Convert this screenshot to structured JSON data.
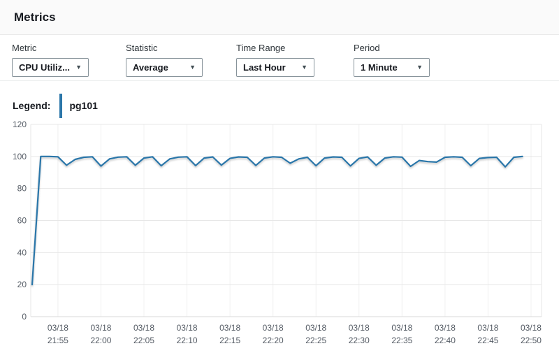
{
  "header": {
    "title": "Metrics"
  },
  "filters": {
    "metric": {
      "label": "Metric",
      "value": "CPU Utiliz..."
    },
    "statistic": {
      "label": "Statistic",
      "value": "Average"
    },
    "time_range": {
      "label": "Time Range",
      "value": "Last Hour"
    },
    "period": {
      "label": "Period",
      "value": "1 Minute"
    }
  },
  "icons": {
    "dropdown_caret": "▼"
  },
  "legend": {
    "label": "Legend:",
    "series_name": "pg101",
    "color": "#2b76a9"
  },
  "chart_data": {
    "type": "line",
    "title": "",
    "xlabel": "",
    "ylabel": "",
    "ylim": [
      0,
      120
    ],
    "yticks": [
      0,
      20,
      40,
      60,
      80,
      100,
      120
    ],
    "grid": true,
    "legend_position": "top-left",
    "x_ticks": [
      {
        "date": "03/18",
        "time": "21:55",
        "offset_min": 3
      },
      {
        "date": "03/18",
        "time": "22:00",
        "offset_min": 8
      },
      {
        "date": "03/18",
        "time": "22:05",
        "offset_min": 13
      },
      {
        "date": "03/18",
        "time": "22:10",
        "offset_min": 18
      },
      {
        "date": "03/18",
        "time": "22:15",
        "offset_min": 23
      },
      {
        "date": "03/18",
        "time": "22:20",
        "offset_min": 28
      },
      {
        "date": "03/18",
        "time": "22:25",
        "offset_min": 33
      },
      {
        "date": "03/18",
        "time": "22:30",
        "offset_min": 38
      },
      {
        "date": "03/18",
        "time": "22:35",
        "offset_min": 43
      },
      {
        "date": "03/18",
        "time": "22:40",
        "offset_min": 48
      },
      {
        "date": "03/18",
        "time": "22:45",
        "offset_min": 53
      },
      {
        "date": "03/18",
        "time": "22:50",
        "offset_min": 58
      }
    ],
    "series": [
      {
        "name": "pg101",
        "color": "#2b76a9",
        "times": [
          "21:52",
          "21:53",
          "21:54",
          "21:55",
          "21:56",
          "21:57",
          "21:58",
          "21:59",
          "22:00",
          "22:01",
          "22:02",
          "22:03",
          "22:04",
          "22:05",
          "22:06",
          "22:07",
          "22:08",
          "22:09",
          "22:10",
          "22:11",
          "22:12",
          "22:13",
          "22:14",
          "22:15",
          "22:16",
          "22:17",
          "22:18",
          "22:19",
          "22:20",
          "22:21",
          "22:22",
          "22:23",
          "22:24",
          "22:25",
          "22:26",
          "22:27",
          "22:28",
          "22:29",
          "22:30",
          "22:31",
          "22:32",
          "22:33",
          "22:34",
          "22:35",
          "22:36",
          "22:37",
          "22:38",
          "22:39",
          "22:40",
          "22:41",
          "22:42",
          "22:43",
          "22:44",
          "22:45",
          "22:46",
          "22:47",
          "22:48",
          "22:49"
        ],
        "values": [
          20,
          100,
          100,
          99.8,
          94.5,
          98.2,
          99.5,
          99.8,
          94.0,
          98.5,
          99.6,
          99.8,
          94.5,
          99.0,
          99.8,
          94.2,
          98.5,
          99.6,
          99.8,
          94.3,
          99.0,
          99.7,
          94.6,
          98.8,
          99.7,
          99.5,
          94.4,
          99.0,
          99.8,
          99.5,
          95.8,
          98.5,
          99.5,
          94.2,
          99.0,
          99.7,
          99.5,
          94.1,
          98.8,
          99.7,
          94.5,
          99.0,
          99.8,
          99.6,
          93.8,
          97.5,
          96.8,
          96.5,
          99.5,
          99.8,
          99.5,
          94.2,
          98.8,
          99.3,
          99.5,
          93.5,
          99.5,
          100
        ]
      }
    ]
  }
}
